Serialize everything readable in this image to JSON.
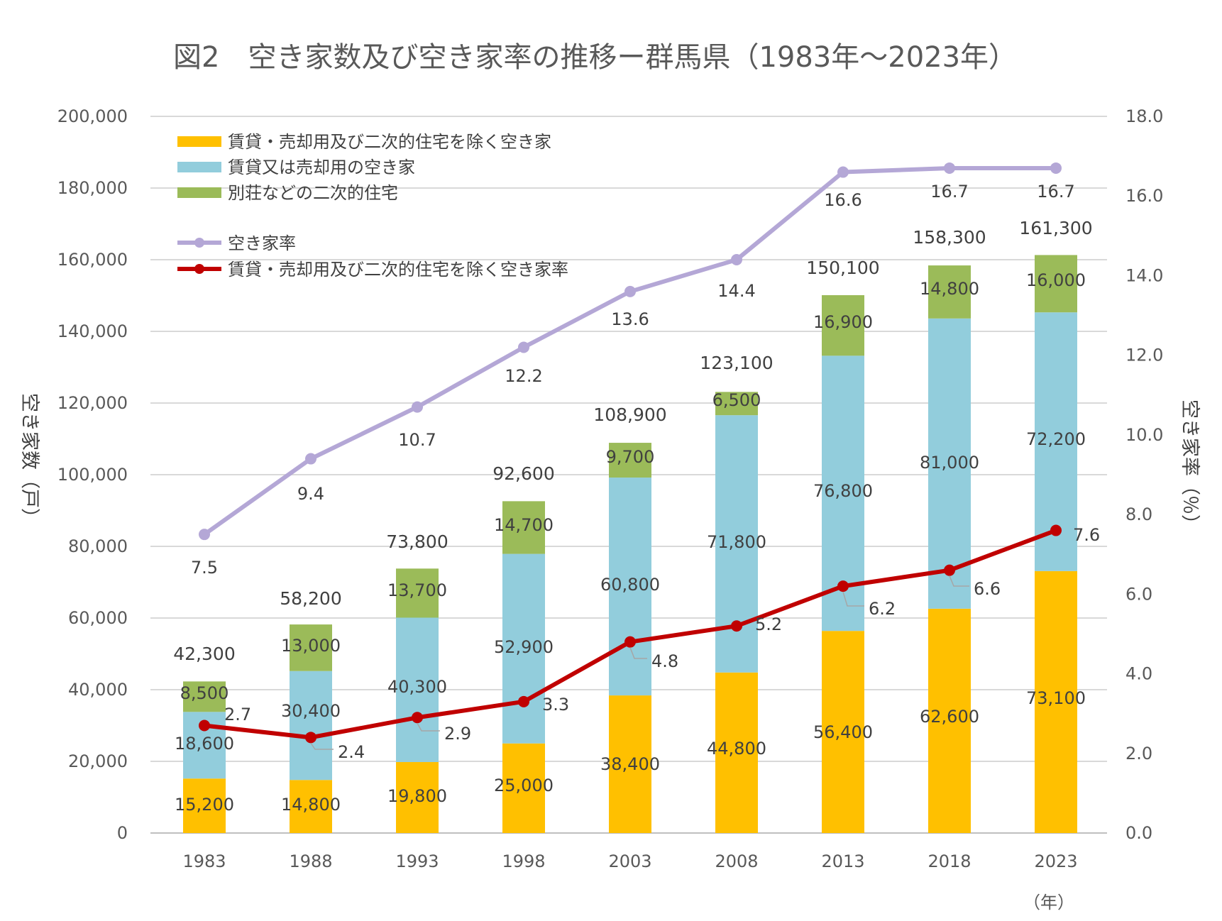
{
  "chart_data": {
    "type": "bar",
    "title": "図2　空き家数及び空き家率の推移ー群馬県（1983年～2023年）",
    "categories": [
      "1983",
      "1988",
      "1993",
      "1998",
      "2003",
      "2008",
      "2013",
      "2018",
      "2023"
    ],
    "stacked": true,
    "series": [
      {
        "name": "賃貸・売却用及び二次的住宅を除く空き家",
        "type": "bar",
        "axis": "left",
        "color": "#FFC000",
        "values": [
          15200,
          14800,
          19800,
          25000,
          38400,
          44800,
          56400,
          62600,
          73100
        ]
      },
      {
        "name": "賃貸又は売却用の空き家",
        "type": "bar",
        "axis": "left",
        "color": "#92CDDC",
        "values": [
          18600,
          30400,
          40300,
          52900,
          60800,
          71800,
          76800,
          81000,
          72200
        ]
      },
      {
        "name": "別荘などの二次的住宅",
        "type": "bar",
        "axis": "left",
        "color": "#9BBB59",
        "values": [
          8500,
          13000,
          13700,
          14700,
          9700,
          6500,
          16900,
          14800,
          16000
        ]
      },
      {
        "name": "空き家率",
        "type": "line",
        "axis": "right",
        "color": "#B4A7D6",
        "values": [
          7.5,
          9.4,
          10.7,
          12.2,
          13.6,
          14.4,
          16.6,
          16.7,
          16.7
        ]
      },
      {
        "name": "賃貸・売却用及び二次的住宅を除く空き家率",
        "type": "line",
        "axis": "right",
        "color": "#C00000",
        "values": [
          2.7,
          2.4,
          2.9,
          3.3,
          4.8,
          5.2,
          6.2,
          6.6,
          7.6
        ]
      }
    ],
    "totals": [
      42300,
      58200,
      73800,
      92600,
      108900,
      123100,
      150100,
      158300,
      161300
    ],
    "bar_labels": [
      [
        "15,200",
        "14,800",
        "19,800",
        "25,000",
        "38,400",
        "44,800",
        "56,400",
        "62,600",
        "73,100"
      ],
      [
        "18,600",
        "30,400",
        "40,300",
        "52,900",
        "60,800",
        "71,800",
        "76,800",
        "81,000",
        "72,200"
      ],
      [
        "8,500",
        "13,000",
        "13,700",
        "14,700",
        "9,700",
        "6,500",
        "16,900",
        "14,800",
        "16,000"
      ]
    ],
    "total_labels": [
      "42,300",
      "58,200",
      "73,800",
      "92,600",
      "108,900",
      "123,100",
      "150,100",
      "158,300",
      "161,300"
    ],
    "line_labels": [
      [
        "7.5",
        "9.4",
        "10.7",
        "12.2",
        "13.6",
        "14.4",
        "16.6",
        "16.7",
        "16.7"
      ],
      [
        "2.7",
        "2.4",
        "2.9",
        "3.3",
        "4.8",
        "5.2",
        "6.2",
        "6.6",
        "7.6"
      ]
    ],
    "y_left": {
      "label": "空き家数（戸）",
      "ylim": [
        0,
        200000
      ],
      "ticks": [
        "0",
        "20,000",
        "40,000",
        "60,000",
        "80,000",
        "100,000",
        "120,000",
        "140,000",
        "160,000",
        "180,000",
        "200,000"
      ]
    },
    "y_right": {
      "label": "空き家率（％）",
      "ylim": [
        0,
        18
      ],
      "ticks": [
        "0.0",
        "2.0",
        "4.0",
        "6.0",
        "8.0",
        "10.0",
        "12.0",
        "14.0",
        "16.0",
        "18.0"
      ]
    },
    "x_unit": "（年）",
    "grid": true,
    "legend_position": "top-left"
  }
}
